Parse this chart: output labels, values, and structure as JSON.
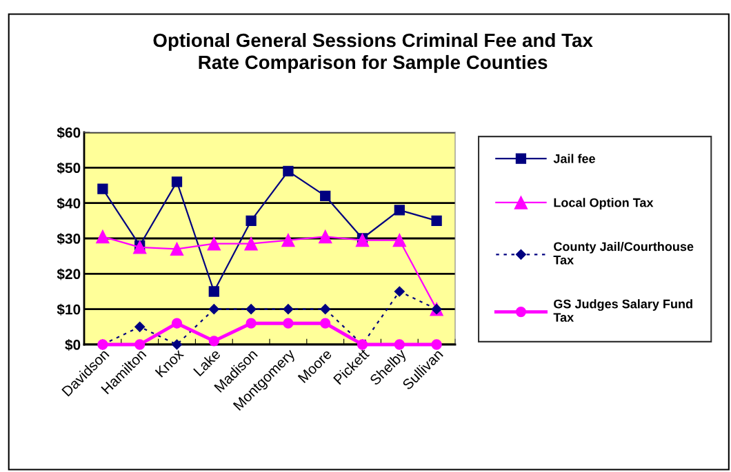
{
  "chart_data": {
    "type": "line",
    "title": "Optional General Sessions Criminal Fee and Tax\nRate Comparison for Sample Counties",
    "categories": [
      "Davidson",
      "Hamilton",
      "Knox",
      "Lake",
      "Madison",
      "Montgomery",
      "Moore",
      "Pickett",
      "Shelby",
      "Sullivan"
    ],
    "series": [
      {
        "name": "Jail fee",
        "color": "#000080",
        "marker": "square",
        "line_style": "solid",
        "values": [
          44,
          28,
          46,
          15,
          35,
          49,
          42,
          30,
          38,
          35
        ]
      },
      {
        "name": "Local Option Tax",
        "color": "#ff00ff",
        "marker": "triangle",
        "line_style": "solid",
        "values": [
          30.5,
          27.5,
          27,
          28.5,
          28.5,
          29.5,
          30.5,
          29.5,
          29.5,
          10
        ]
      },
      {
        "name": "County Jail/Courthouse\nTax",
        "color": "#000080",
        "marker": "diamond",
        "line_style": "dotted",
        "values": [
          0,
          5,
          0,
          10,
          10,
          10,
          10,
          0,
          15,
          10
        ]
      },
      {
        "name": "GS Judges Salary Fund\nTax",
        "color": "#ff00ff",
        "marker": "circle",
        "line_style": "solid",
        "values": [
          0,
          0,
          6,
          1,
          6,
          6,
          6,
          0,
          0,
          0
        ]
      }
    ],
    "ylim": [
      0,
      60
    ],
    "yticks": [
      {
        "value": 0,
        "label": "$0"
      },
      {
        "value": 10,
        "label": "$10"
      },
      {
        "value": 20,
        "label": "$20"
      },
      {
        "value": 30,
        "label": "$30"
      },
      {
        "value": 40,
        "label": "$40"
      },
      {
        "value": 50,
        "label": "$50"
      },
      {
        "value": 60,
        "label": "$60"
      }
    ],
    "grid": "y",
    "legend": "right"
  }
}
